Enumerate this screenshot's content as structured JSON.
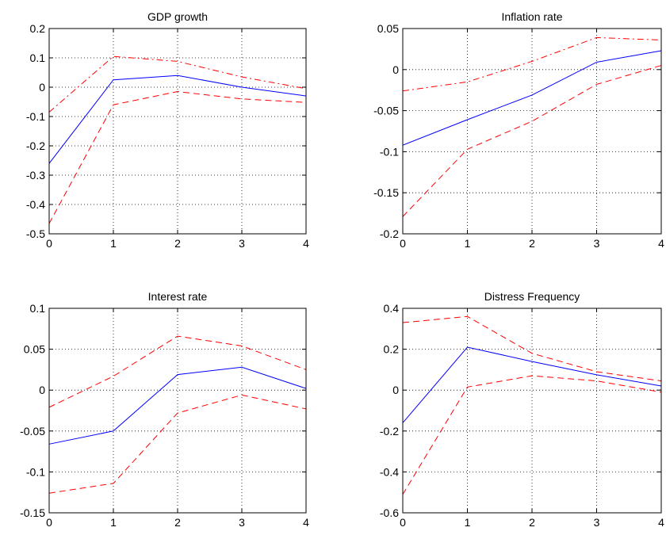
{
  "chart_data": [
    {
      "type": "line",
      "title": "GDP growth",
      "x": [
        0,
        1,
        2,
        3,
        4
      ],
      "xticks": [
        "0",
        "1",
        "2",
        "3",
        "4"
      ],
      "xlim": [
        0,
        4
      ],
      "ylim": [
        -0.5,
        0.2
      ],
      "yticks": [
        "-0.5",
        "-0.4",
        "-0.3",
        "-0.2",
        "-0.1",
        "0",
        "0.1",
        "0.2"
      ],
      "ytick_values": [
        -0.5,
        -0.4,
        -0.3,
        -0.2,
        -0.1,
        0,
        0.1,
        0.2
      ],
      "grid": true,
      "series": [
        {
          "role": "estimate",
          "color": "#0000ff",
          "style": "solid",
          "values": [
            -0.26,
            0.025,
            0.04,
            0.0,
            -0.03
          ]
        },
        {
          "role": "upper",
          "color": "#ff0000",
          "style": "dashdot",
          "values": [
            -0.085,
            0.105,
            0.088,
            0.035,
            -0.005
          ]
        },
        {
          "role": "lower",
          "color": "#ff0000",
          "style": "dashed",
          "values": [
            -0.465,
            -0.06,
            -0.015,
            -0.04,
            -0.052
          ]
        }
      ]
    },
    {
      "type": "line",
      "title": "Inflation rate",
      "x": [
        0,
        1,
        2,
        3,
        4
      ],
      "xticks": [
        "0",
        "1",
        "2",
        "3",
        "4"
      ],
      "xlim": [
        0,
        4
      ],
      "ylim": [
        -0.2,
        0.05
      ],
      "yticks": [
        "-0.2",
        "-0.15",
        "-0.1",
        "-0.05",
        "0",
        "0.05"
      ],
      "ytick_values": [
        -0.2,
        -0.15,
        -0.1,
        -0.05,
        0,
        0.05
      ],
      "grid": true,
      "series": [
        {
          "role": "estimate",
          "color": "#0000ff",
          "style": "solid",
          "values": [
            -0.092,
            -0.061,
            -0.031,
            0.009,
            0.023
          ]
        },
        {
          "role": "upper",
          "color": "#ff0000",
          "style": "dashdot",
          "values": [
            -0.026,
            -0.015,
            0.01,
            0.039,
            0.036
          ]
        },
        {
          "role": "lower",
          "color": "#ff0000",
          "style": "dashed",
          "values": [
            -0.179,
            -0.097,
            -0.063,
            -0.018,
            0.005
          ]
        }
      ]
    },
    {
      "type": "line",
      "title": "Interest rate",
      "x": [
        0,
        1,
        2,
        3,
        4
      ],
      "xticks": [
        "0",
        "1",
        "2",
        "3",
        "4"
      ],
      "xlim": [
        0,
        4
      ],
      "ylim": [
        -0.15,
        0.1
      ],
      "yticks": [
        "-0.15",
        "-0.1",
        "-0.05",
        "0",
        "0.05",
        "0.1"
      ],
      "ytick_values": [
        -0.15,
        -0.1,
        -0.05,
        0,
        0.05,
        0.1
      ],
      "grid": true,
      "series": [
        {
          "role": "estimate",
          "color": "#0000ff",
          "style": "solid",
          "values": [
            -0.066,
            -0.05,
            0.019,
            0.028,
            0.002
          ]
        },
        {
          "role": "upper",
          "color": "#ff0000",
          "style": "dashed",
          "values": [
            -0.021,
            0.017,
            0.066,
            0.054,
            0.025
          ]
        },
        {
          "role": "lower",
          "color": "#ff0000",
          "style": "dashed",
          "values": [
            -0.126,
            -0.114,
            -0.028,
            -0.006,
            -0.023
          ]
        }
      ]
    },
    {
      "type": "line",
      "title": "Distress Frequency",
      "x": [
        0,
        1,
        2,
        3,
        4
      ],
      "xticks": [
        "0",
        "1",
        "2",
        "3",
        "4"
      ],
      "xlim": [
        0,
        4
      ],
      "ylim": [
        -0.6,
        0.4
      ],
      "yticks": [
        "-0.6",
        "-0.4",
        "-0.2",
        "0",
        "0.2",
        "0.4"
      ],
      "ytick_values": [
        -0.6,
        -0.4,
        -0.2,
        0,
        0.2,
        0.4
      ],
      "grid": true,
      "series": [
        {
          "role": "estimate",
          "color": "#0000ff",
          "style": "solid",
          "values": [
            -0.16,
            0.21,
            0.14,
            0.075,
            0.02
          ]
        },
        {
          "role": "upper",
          "color": "#ff0000",
          "style": "dashed",
          "values": [
            0.33,
            0.36,
            0.18,
            0.09,
            0.045
          ]
        },
        {
          "role": "lower",
          "color": "#ff0000",
          "style": "dashed",
          "values": [
            -0.51,
            0.015,
            0.07,
            0.045,
            -0.01
          ]
        }
      ]
    }
  ]
}
